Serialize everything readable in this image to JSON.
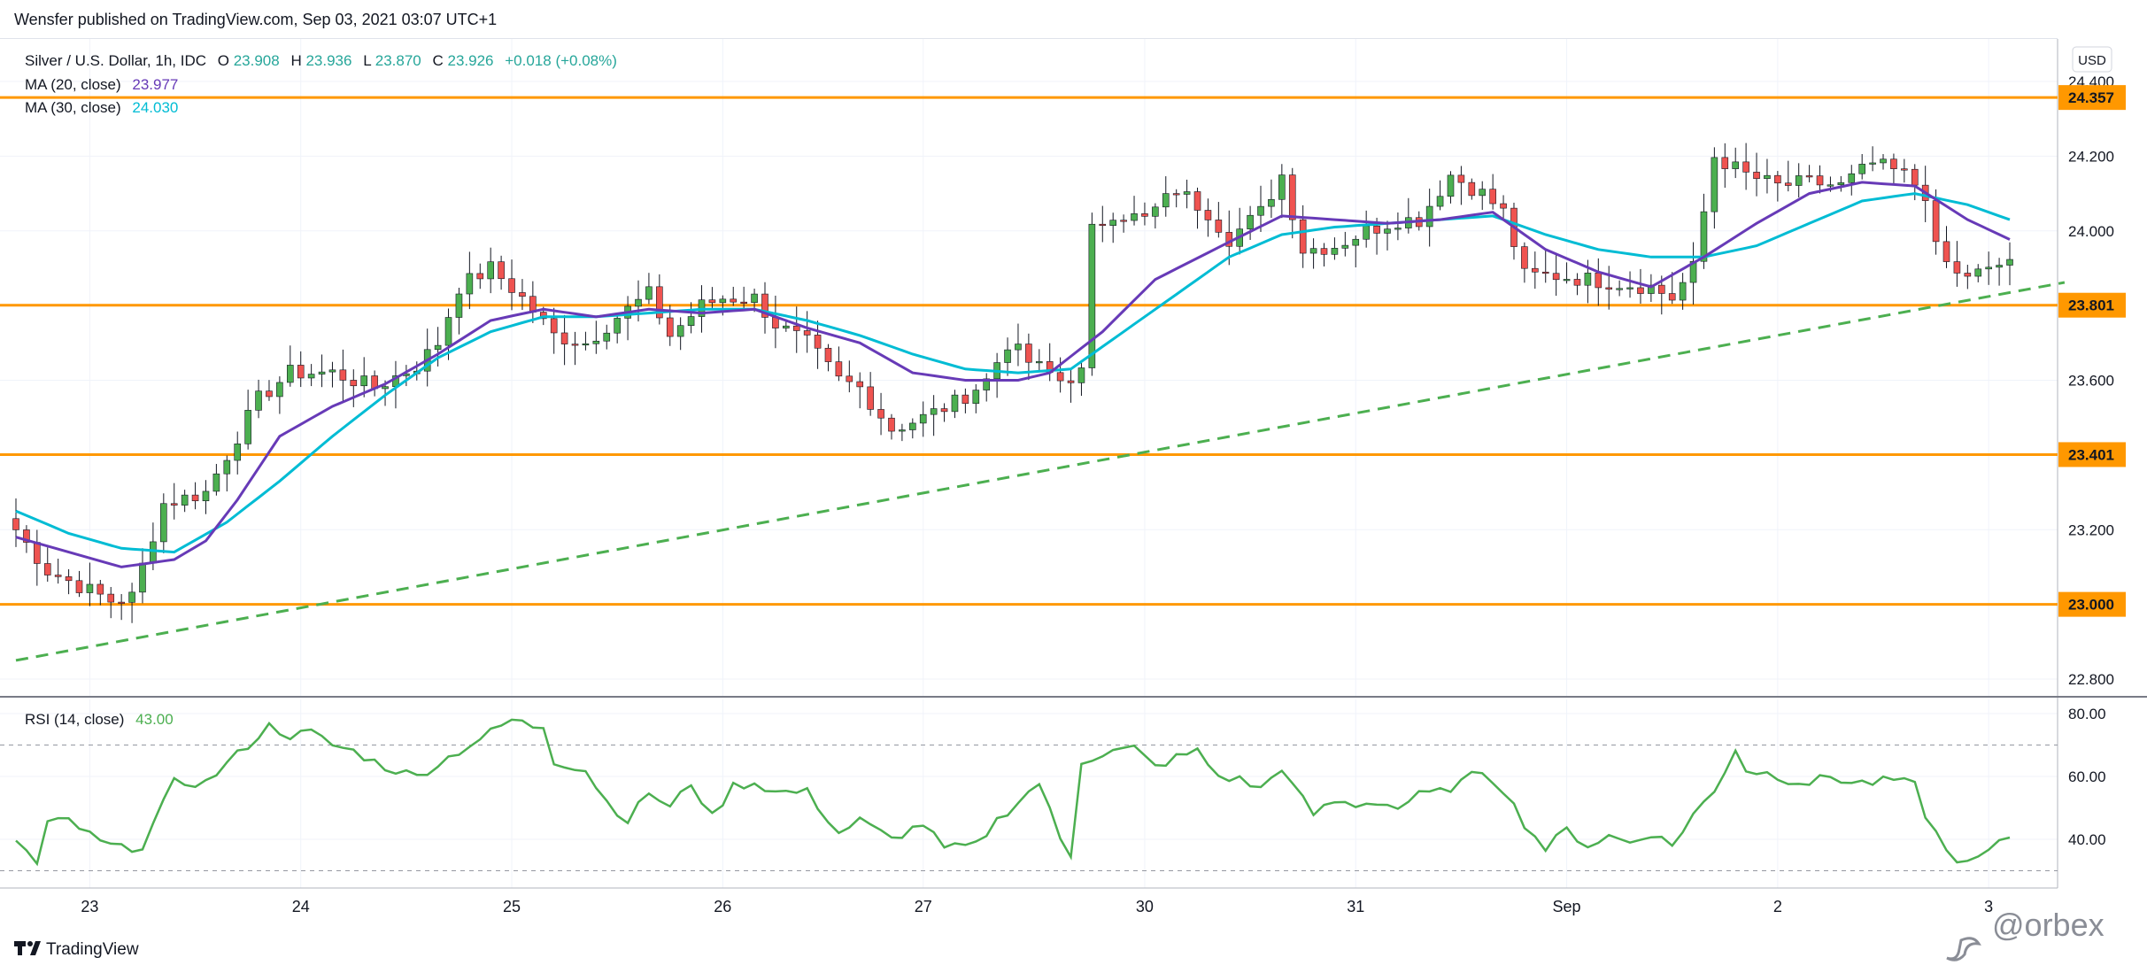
{
  "header": {
    "published_by": "Wensfer published on TradingView.com, Sep 03, 2021 03:07 UTC+1"
  },
  "legend": {
    "symbol": "Silver / U.S. Dollar, 1h, IDC",
    "o_label": "O",
    "o_value": "23.908",
    "h_label": "H",
    "h_value": "23.936",
    "l_label": "L",
    "l_value": "23.870",
    "c_label": "C",
    "c_value": "23.926",
    "change": "+0.018 (+0.08%)",
    "ma20_label": "MA (20, close)",
    "ma20_value": "23.977",
    "ma30_label": "MA (30, close)",
    "ma30_value": "24.030",
    "rsi_label": "RSI (14, close)",
    "rsi_value": "43.00"
  },
  "currency_button": "USD",
  "footer": {
    "brand": "TradingView",
    "watermark": "@orbex"
  },
  "colors": {
    "up": "#26a69a",
    "up_fill": "#4caf50",
    "down": "#ef5350",
    "ma20": "#673ab7",
    "ma30": "#00bcd4",
    "level": "#ff9800",
    "trend": "#4caf50",
    "rsi": "#4caf50",
    "grid": "#f0f3fa"
  },
  "chart_data": [
    {
      "type": "candlestick",
      "title": "Silver / U.S. Dollar, 1h, IDC",
      "ylim": [
        22.75,
        24.47
      ],
      "y_ticks": [
        "24.400",
        "24.200",
        "24.000",
        "23.800",
        "23.600",
        "23.400",
        "23.200",
        "23.000",
        "22.800"
      ],
      "x_ticks": [
        "23",
        "24",
        "25",
        "26",
        "27",
        "30",
        "31",
        "Sep",
        "2",
        "3"
      ],
      "n_bars": 190,
      "horizontal_levels": [
        {
          "label": "24.357",
          "value": 24.357
        },
        {
          "label": "23.801",
          "value": 23.801
        },
        {
          "label": "23.401",
          "value": 23.401
        },
        {
          "label": "23.000",
          "value": 23.0
        }
      ],
      "trendline": {
        "style": "dashed",
        "points": [
          [
            0,
            22.85
          ],
          [
            190,
            23.84
          ]
        ]
      },
      "close_anchors": [
        [
          0,
          23.2
        ],
        [
          3,
          23.09
        ],
        [
          6,
          23.05
        ],
        [
          9,
          23.01
        ],
        [
          11,
          23.02
        ],
        [
          14,
          23.27
        ],
        [
          18,
          23.3
        ],
        [
          20,
          23.4
        ],
        [
          23,
          23.55
        ],
        [
          26,
          23.62
        ],
        [
          30,
          23.62
        ],
        [
          34,
          23.58
        ],
        [
          38,
          23.64
        ],
        [
          40,
          23.7
        ],
        [
          42,
          23.85
        ],
        [
          45,
          23.9
        ],
        [
          48,
          23.82
        ],
        [
          51,
          23.72
        ],
        [
          54,
          23.7
        ],
        [
          57,
          23.77
        ],
        [
          60,
          23.83
        ],
        [
          62,
          23.72
        ],
        [
          65,
          23.8
        ],
        [
          67,
          23.82
        ],
        [
          70,
          23.82
        ],
        [
          72,
          23.75
        ],
        [
          75,
          23.7
        ],
        [
          78,
          23.6
        ],
        [
          80,
          23.58
        ],
        [
          83,
          23.47
        ],
        [
          86,
          23.5
        ],
        [
          89,
          23.54
        ],
        [
          92,
          23.6
        ],
        [
          94,
          23.7
        ],
        [
          96,
          23.65
        ],
        [
          99,
          23.6
        ],
        [
          101,
          23.62
        ],
        [
          102,
          24.0
        ],
        [
          104,
          24.05
        ],
        [
          107,
          24.03
        ],
        [
          110,
          24.11
        ],
        [
          113,
          24.05
        ],
        [
          115,
          23.98
        ],
        [
          118,
          24.05
        ],
        [
          120,
          24.15
        ],
        [
          122,
          23.95
        ],
        [
          125,
          23.96
        ],
        [
          128,
          24.0
        ],
        [
          131,
          24.03
        ],
        [
          133,
          24.03
        ],
        [
          136,
          24.15
        ],
        [
          139,
          24.1
        ],
        [
          141,
          24.05
        ],
        [
          143,
          23.88
        ],
        [
          146,
          23.88
        ],
        [
          149,
          23.87
        ],
        [
          152,
          23.86
        ],
        [
          155,
          23.85
        ],
        [
          157,
          23.82
        ],
        [
          159,
          23.9
        ],
        [
          161,
          24.2
        ],
        [
          164,
          24.15
        ],
        [
          167,
          24.12
        ],
        [
          170,
          24.13
        ],
        [
          173,
          24.12
        ],
        [
          176,
          24.18
        ],
        [
          179,
          24.15
        ],
        [
          181,
          24.1
        ],
        [
          182,
          23.95
        ],
        [
          184,
          23.88
        ],
        [
          187,
          23.89
        ],
        [
          189,
          23.926
        ]
      ],
      "ma_anchors": {
        "ma20": [
          [
            0,
            23.18
          ],
          [
            10,
            23.1
          ],
          [
            15,
            23.12
          ],
          [
            18,
            23.17
          ],
          [
            21,
            23.28
          ],
          [
            25,
            23.45
          ],
          [
            30,
            23.53
          ],
          [
            35,
            23.59
          ],
          [
            40,
            23.67
          ],
          [
            45,
            23.76
          ],
          [
            50,
            23.79
          ],
          [
            55,
            23.77
          ],
          [
            60,
            23.79
          ],
          [
            65,
            23.78
          ],
          [
            70,
            23.79
          ],
          [
            75,
            23.74
          ],
          [
            80,
            23.7
          ],
          [
            85,
            23.62
          ],
          [
            90,
            23.6
          ],
          [
            95,
            23.6
          ],
          [
            98,
            23.62
          ],
          [
            103,
            23.73
          ],
          [
            108,
            23.87
          ],
          [
            115,
            23.97
          ],
          [
            120,
            24.04
          ],
          [
            125,
            24.03
          ],
          [
            130,
            24.02
          ],
          [
            135,
            24.03
          ],
          [
            140,
            24.05
          ],
          [
            145,
            23.95
          ],
          [
            150,
            23.89
          ],
          [
            155,
            23.85
          ],
          [
            160,
            23.93
          ],
          [
            165,
            24.02
          ],
          [
            170,
            24.1
          ],
          [
            175,
            24.13
          ],
          [
            180,
            24.12
          ],
          [
            185,
            24.03
          ],
          [
            189,
            23.977
          ]
        ],
        "ma30": [
          [
            0,
            23.25
          ],
          [
            5,
            23.19
          ],
          [
            10,
            23.15
          ],
          [
            15,
            23.14
          ],
          [
            20,
            23.22
          ],
          [
            25,
            23.33
          ],
          [
            30,
            23.45
          ],
          [
            35,
            23.56
          ],
          [
            40,
            23.66
          ],
          [
            45,
            23.73
          ],
          [
            50,
            23.77
          ],
          [
            55,
            23.77
          ],
          [
            60,
            23.78
          ],
          [
            65,
            23.79
          ],
          [
            70,
            23.79
          ],
          [
            75,
            23.76
          ],
          [
            80,
            23.72
          ],
          [
            85,
            23.67
          ],
          [
            90,
            23.63
          ],
          [
            95,
            23.62
          ],
          [
            100,
            23.63
          ],
          [
            105,
            23.73
          ],
          [
            110,
            23.83
          ],
          [
            115,
            23.93
          ],
          [
            120,
            23.99
          ],
          [
            125,
            24.01
          ],
          [
            130,
            24.02
          ],
          [
            135,
            24.03
          ],
          [
            140,
            24.04
          ],
          [
            145,
            23.99
          ],
          [
            150,
            23.95
          ],
          [
            155,
            23.93
          ],
          [
            160,
            23.93
          ],
          [
            165,
            23.96
          ],
          [
            170,
            24.02
          ],
          [
            175,
            24.08
          ],
          [
            180,
            24.1
          ],
          [
            185,
            24.07
          ],
          [
            189,
            24.03
          ]
        ]
      }
    },
    {
      "type": "line",
      "title": "RSI (14, close)",
      "ylim": [
        25,
        85
      ],
      "y_ticks": [
        "80.00",
        "60.00",
        "40.00"
      ],
      "bands": [
        70,
        30
      ],
      "anchors": [
        [
          0,
          40
        ],
        [
          2,
          32
        ],
        [
          3,
          45
        ],
        [
          5,
          46
        ],
        [
          8,
          39
        ],
        [
          10,
          37
        ],
        [
          12,
          38
        ],
        [
          15,
          58
        ],
        [
          18,
          58
        ],
        [
          20,
          64
        ],
        [
          22,
          70
        ],
        [
          24,
          76
        ],
        [
          26,
          73
        ],
        [
          28,
          74
        ],
        [
          30,
          70
        ],
        [
          32,
          68
        ],
        [
          35,
          63
        ],
        [
          38,
          60
        ],
        [
          40,
          64
        ],
        [
          42,
          68
        ],
        [
          45,
          74
        ],
        [
          47,
          78
        ],
        [
          49,
          76
        ],
        [
          50,
          76
        ],
        [
          51,
          65
        ],
        [
          54,
          62
        ],
        [
          56,
          52
        ],
        [
          58,
          46
        ],
        [
          60,
          55
        ],
        [
          62,
          50
        ],
        [
          64,
          58
        ],
        [
          66,
          47
        ],
        [
          68,
          57
        ],
        [
          70,
          58
        ],
        [
          72,
          55
        ],
        [
          75,
          55
        ],
        [
          78,
          42
        ],
        [
          80,
          46
        ],
        [
          83,
          40
        ],
        [
          86,
          45
        ],
        [
          88,
          37
        ],
        [
          91,
          38
        ],
        [
          93,
          46
        ],
        [
          95,
          52
        ],
        [
          97,
          58
        ],
        [
          99,
          40
        ],
        [
          100,
          35
        ],
        [
          101,
          65
        ],
        [
          104,
          68
        ],
        [
          106,
          69
        ],
        [
          108,
          63
        ],
        [
          110,
          66
        ],
        [
          112,
          68
        ],
        [
          114,
          60
        ],
        [
          116,
          59
        ],
        [
          118,
          56
        ],
        [
          120,
          63
        ],
        [
          121,
          57
        ],
        [
          123,
          48
        ],
        [
          125,
          52
        ],
        [
          127,
          51
        ],
        [
          129,
          52
        ],
        [
          131,
          50
        ],
        [
          133,
          54
        ],
        [
          135,
          55
        ],
        [
          137,
          58
        ],
        [
          139,
          62
        ],
        [
          141,
          56
        ],
        [
          143,
          45
        ],
        [
          145,
          37
        ],
        [
          147,
          43
        ],
        [
          149,
          38
        ],
        [
          151,
          41
        ],
        [
          153,
          39
        ],
        [
          155,
          42
        ],
        [
          157,
          38
        ],
        [
          159,
          48
        ],
        [
          161,
          55
        ],
        [
          163,
          69
        ],
        [
          164,
          62
        ],
        [
          166,
          61
        ],
        [
          168,
          59
        ],
        [
          170,
          58
        ],
        [
          172,
          60
        ],
        [
          174,
          58
        ],
        [
          176,
          58
        ],
        [
          178,
          59
        ],
        [
          180,
          57
        ],
        [
          181,
          48
        ],
        [
          183,
          36
        ],
        [
          185,
          32
        ],
        [
          187,
          36
        ],
        [
          189,
          41
        ],
        [
          190,
          43
        ]
      ]
    }
  ]
}
